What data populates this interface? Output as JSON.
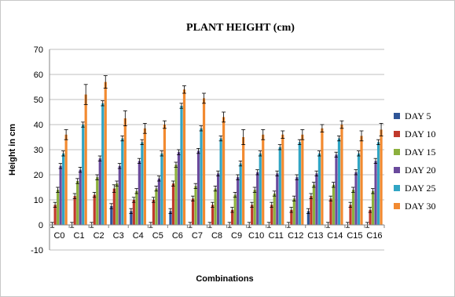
{
  "chart_data": {
    "type": "bar",
    "title": "PLANT HEIGHT (cm)",
    "xlabel": "Combinations",
    "ylabel": "Height in cm",
    "ylim": [
      -10,
      70
    ],
    "yticks": [
      -10,
      0,
      10,
      20,
      30,
      40,
      50,
      60,
      70
    ],
    "grid": true,
    "legend_position": "right",
    "error_bars": true,
    "categories": [
      "C0",
      "C1",
      "C2",
      "C3",
      "C4",
      "C5",
      "C6",
      "C7",
      "C8",
      "C9",
      "C10",
      "C11",
      "C12",
      "C13",
      "C14",
      "C15",
      "C16"
    ],
    "series": [
      {
        "name": "DAY 5",
        "color": "#2f5597",
        "values": [
          0,
          0,
          0,
          7.5,
          5.5,
          0,
          5.5,
          0,
          0,
          0,
          0,
          0,
          0,
          5.5,
          0,
          0,
          0
        ],
        "errors": [
          1,
          1,
          1,
          1,
          1,
          1,
          1,
          1,
          1,
          1,
          1,
          1,
          1,
          1,
          1,
          1,
          1
        ]
      },
      {
        "name": "DAY 10",
        "color": "#c0392b",
        "values": [
          8,
          11.5,
          12,
          14.5,
          10,
          10,
          16.5,
          10.5,
          8,
          6,
          8,
          8,
          6,
          11.5,
          10.5,
          8,
          6
        ],
        "errors": [
          1,
          1,
          1,
          1.5,
          1,
          1,
          1,
          1,
          1,
          1,
          1,
          1,
          1,
          1,
          1,
          1,
          1
        ]
      },
      {
        "name": "DAY 15",
        "color": "#8cb03d",
        "values": [
          14,
          17.5,
          19,
          16.5,
          13.5,
          14.5,
          24,
          15.5,
          14.5,
          12,
          14,
          12.5,
          10.5,
          16,
          16,
          14,
          13.5
        ],
        "errors": [
          1,
          1,
          1,
          1,
          1,
          1,
          1,
          1,
          1,
          1,
          1,
          1,
          1,
          1,
          1,
          1,
          1
        ]
      },
      {
        "name": "DAY 20",
        "color": "#6a4a9c",
        "values": [
          23.5,
          22,
          26.5,
          23.5,
          25.5,
          18.5,
          29,
          29.5,
          20.5,
          19,
          21,
          20.5,
          19,
          20.5,
          28,
          21,
          25.5
        ],
        "errors": [
          1,
          1,
          1,
          1,
          1,
          1,
          1,
          1,
          1,
          1,
          1,
          1,
          1,
          1,
          1,
          1,
          1
        ]
      },
      {
        "name": "DAY 25",
        "color": "#31a5c4",
        "values": [
          28.5,
          40,
          48.5,
          34.5,
          33,
          28.5,
          47.5,
          38.5,
          34.5,
          24.5,
          28.5,
          31,
          33,
          28.5,
          34.5,
          28.5,
          33
        ],
        "errors": [
          1,
          1,
          1,
          1,
          1,
          1,
          1,
          1,
          1,
          1,
          1,
          1,
          1,
          1,
          1,
          1,
          1
        ]
      },
      {
        "name": "DAY 30",
        "color": "#f28a30",
        "values": [
          36,
          52,
          57,
          42.5,
          38.5,
          40,
          54,
          50.5,
          43,
          35,
          36,
          36,
          36,
          38.5,
          40,
          35.5,
          38
        ],
        "errors": [
          2,
          4,
          2.5,
          3,
          2,
          1.5,
          1.5,
          2,
          2,
          3,
          2,
          1.5,
          2,
          1.5,
          1.5,
          2,
          2.5
        ]
      }
    ]
  }
}
